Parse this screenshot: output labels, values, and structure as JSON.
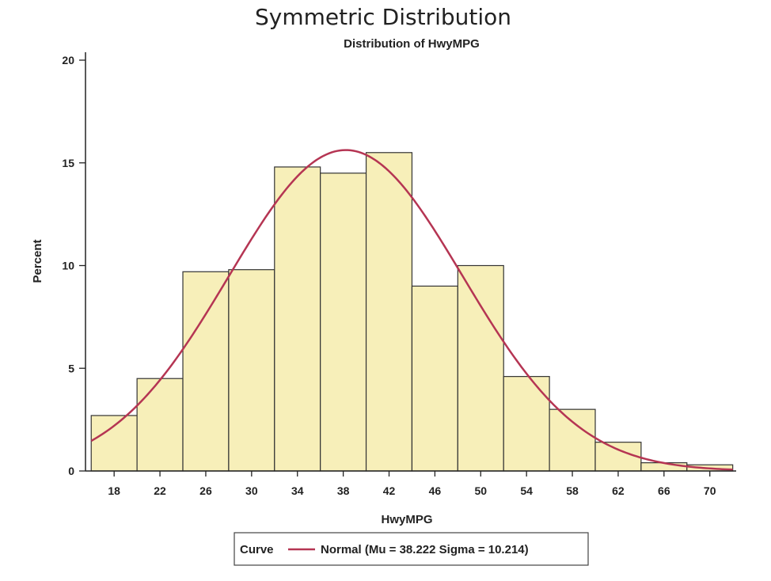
{
  "chart_data": {
    "type": "bar",
    "title": "Symmetric Distribution",
    "subtitle": "Distribution of HwyMPG",
    "xlabel": "HwyMPG",
    "ylabel": "Percent",
    "xlim": [
      15.5,
      72.3
    ],
    "ylim": [
      0,
      20
    ],
    "x_ticks": [
      "18",
      "22",
      "26",
      "30",
      "34",
      "38",
      "42",
      "46",
      "50",
      "54",
      "58",
      "62",
      "66",
      "70"
    ],
    "y_ticks": [
      "0",
      "5",
      "10",
      "15",
      "20"
    ],
    "bin_edges": [
      16,
      20,
      24,
      28,
      32,
      36,
      40,
      44,
      48,
      52,
      56,
      60,
      64,
      68,
      72
    ],
    "values": [
      2.7,
      4.5,
      9.7,
      9.8,
      14.8,
      14.5,
      15.5,
      9.0,
      10.0,
      4.6,
      3.0,
      1.4,
      0.4,
      0.3
    ],
    "series": [
      {
        "name": "Normal",
        "type": "curve",
        "mu": 38.222,
        "sigma": 10.214
      }
    ],
    "legend": {
      "position": "bottom",
      "label": "Curve",
      "entry": "Normal (Mu = 38.222 Sigma = 10.214)"
    },
    "colors": {
      "bar_fill": "#f7efb9",
      "bar_stroke": "#333333",
      "curve": "#b53553",
      "axis": "#222222"
    }
  }
}
